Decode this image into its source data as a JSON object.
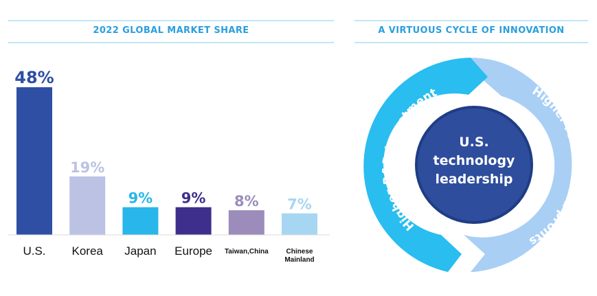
{
  "left_panel": {
    "title": "2022 GLOBAL MARKET SHARE"
  },
  "right_panel": {
    "title": "A VIRTUOUS CYCLE OF INNOVATION",
    "center_lines": [
      "U.S.",
      "technology",
      "leadership"
    ],
    "left_arc_text": "Higher R&D Investment",
    "right_arc_text": "Higher revenue and profits",
    "colors": {
      "left_arc": "#29bdf0",
      "right_arc": "#a9cff5",
      "center": "#2e4d9c",
      "center_ring": "#1f3d85"
    }
  },
  "chart_data": {
    "type": "bar",
    "categories": [
      "U.S.",
      "Korea",
      "Japan",
      "Europe",
      "Taiwan,China",
      "Chinese Mainland"
    ],
    "values": [
      48,
      19,
      9,
      9,
      8,
      7
    ],
    "value_labels": [
      "48%",
      "19%",
      "9%",
      "9%",
      "8%",
      "7%"
    ],
    "colors": [
      "#2e4fa3",
      "#bcc2e3",
      "#29b6ea",
      "#3e2f8c",
      "#9b8cbc",
      "#a7d6f2"
    ],
    "title": "2022 GLOBAL MARKET SHARE",
    "xlabel": "",
    "ylabel": "",
    "ylim": [
      0,
      48
    ],
    "grid": false
  }
}
